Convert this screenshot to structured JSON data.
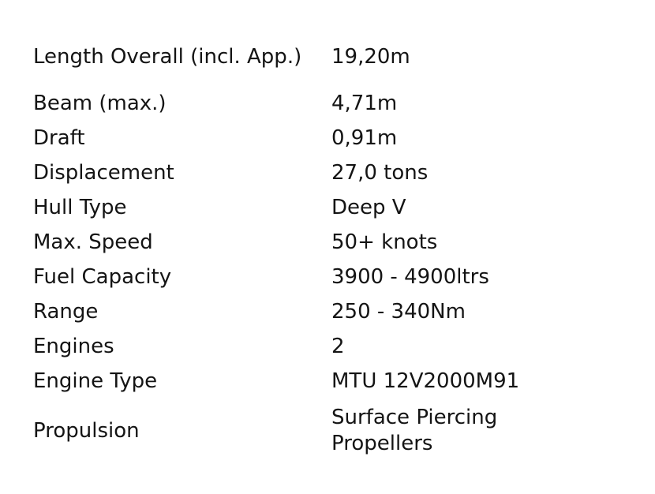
{
  "specs": [
    {
      "label": "Length Overall (incl. App.)",
      "value": "19,20m"
    },
    {
      "label": "Beam (max.)",
      "value": "4,71m"
    },
    {
      "label": "Draft",
      "value": "0,91m"
    },
    {
      "label": "Displacement",
      "value": "27,0 tons"
    },
    {
      "label": "Hull Type",
      "value": "Deep V"
    },
    {
      "label": "Max. Speed",
      "value": "50+ knots"
    },
    {
      "label": "Fuel Capacity",
      "value": "3900 - 4900ltrs"
    },
    {
      "label": "Range",
      "value": "250 - 340Nm"
    },
    {
      "label": "Engines",
      "value": "2"
    },
    {
      "label": "Engine Type",
      "value": "MTU 12V2000M91"
    },
    {
      "label": "Propulsion",
      "value": "Surface Piercing Propellers"
    }
  ]
}
